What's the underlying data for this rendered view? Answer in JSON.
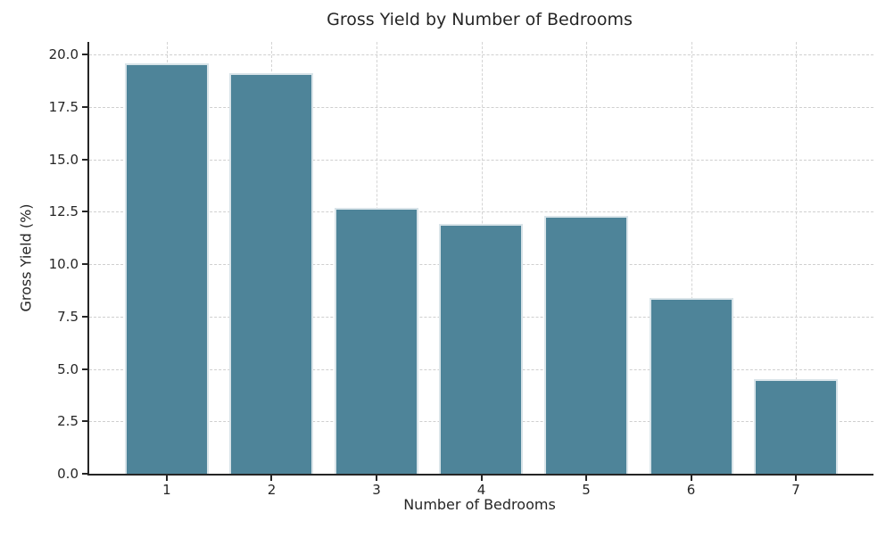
{
  "chart_data": {
    "type": "bar",
    "title": "Gross Yield by Number of Bedrooms",
    "xlabel": "Number of Bedrooms",
    "ylabel": "Gross Yield (%)",
    "categories": [
      "1",
      "2",
      "3",
      "4",
      "5",
      "6",
      "7"
    ],
    "values": [
      19.6,
      19.1,
      12.7,
      11.9,
      12.3,
      8.4,
      4.5
    ],
    "yticks": [
      0.0,
      2.5,
      5.0,
      7.5,
      10.0,
      12.5,
      15.0,
      17.5,
      20.0
    ],
    "ytick_labels": [
      "0.0",
      "2.5",
      "5.0",
      "7.5",
      "10.0",
      "12.5",
      "15.0",
      "17.5",
      "20.0"
    ],
    "ylim": [
      0,
      20.6
    ],
    "bar_width_fraction": 0.8,
    "bar_color": "#4E8499",
    "bar_edge_color": "#D9E4E9",
    "grid": "both",
    "grid_style": "dashed",
    "grid_color": "#cfcfcf",
    "axis_color": "#262626",
    "background_color": "#ffffff",
    "legend_position": "none"
  }
}
